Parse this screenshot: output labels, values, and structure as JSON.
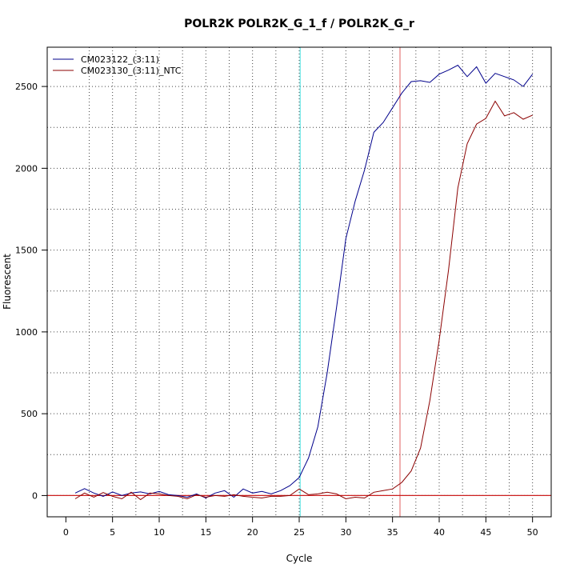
{
  "chart_data": {
    "type": "line",
    "title": "POLR2K  POLR2K_G_1_f / POLR2K_G_r",
    "xlabel": "Cycle",
    "ylabel": "Fluorescent",
    "xlim": [
      -2,
      52
    ],
    "ylim": [
      -130,
      2740
    ],
    "x_ticks": [
      0,
      5,
      10,
      15,
      20,
      25,
      30,
      35,
      40,
      45,
      50
    ],
    "y_ticks": [
      0,
      500,
      1000,
      1500,
      2000,
      2500
    ],
    "grid": true,
    "legend_position": "top-left",
    "threshold_y": 0,
    "cycle_markers": [
      {
        "x": 25.1,
        "color": "#40e0e0"
      },
      {
        "x": 35.8,
        "color": "#e06060"
      }
    ],
    "x": [
      1,
      2,
      3,
      4,
      5,
      6,
      7,
      8,
      9,
      10,
      11,
      12,
      13,
      14,
      15,
      16,
      17,
      18,
      19,
      20,
      21,
      22,
      23,
      24,
      25,
      26,
      27,
      28,
      29,
      30,
      31,
      32,
      33,
      34,
      35,
      36,
      37,
      38,
      39,
      40,
      41,
      42,
      43,
      44,
      45,
      46,
      47,
      48,
      49,
      50
    ],
    "series": [
      {
        "name": "CM023122_(3:11)",
        "color": "#00008b",
        "values": [
          15,
          42,
          15,
          -5,
          22,
          0,
          15,
          22,
          10,
          25,
          5,
          0,
          -10,
          10,
          -15,
          15,
          30,
          -10,
          40,
          15,
          25,
          10,
          30,
          60,
          110,
          230,
          420,
          750,
          1150,
          1570,
          1800,
          1990,
          2220,
          2280,
          2370,
          2460,
          2530,
          2535,
          2525,
          2575,
          2600,
          2630,
          2560,
          2620,
          2520,
          2580,
          2560,
          2540,
          2500,
          2575
        ]
      },
      {
        "name": "CM023130_(3:11)_NTC",
        "color": "#8b0000",
        "values": [
          -20,
          15,
          -10,
          18,
          -5,
          -20,
          20,
          -25,
          15,
          10,
          0,
          -5,
          -20,
          5,
          -10,
          0,
          -5,
          5,
          -5,
          -10,
          -15,
          -5,
          -5,
          0,
          40,
          5,
          10,
          20,
          10,
          -20,
          -10,
          -15,
          20,
          30,
          40,
          80,
          150,
          290,
          580,
          950,
          1380,
          1880,
          2150,
          2270,
          2305,
          2410,
          2320,
          2340,
          2300,
          2325
        ]
      }
    ]
  }
}
